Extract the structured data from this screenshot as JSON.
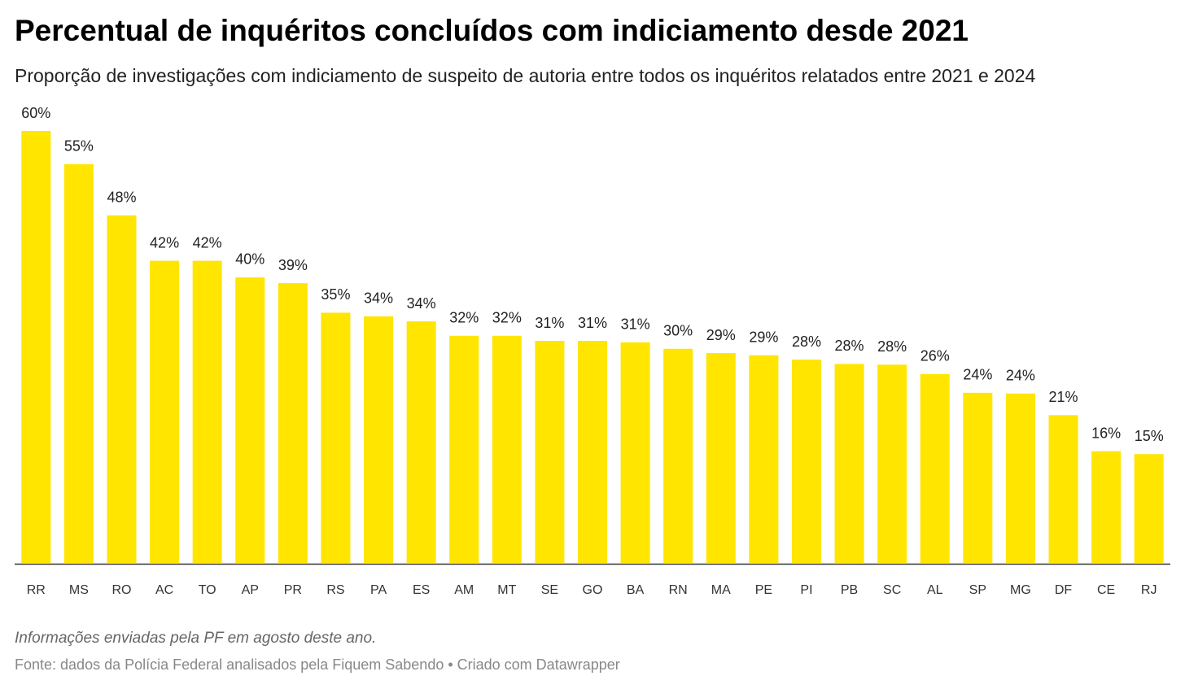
{
  "chart_data": {
    "type": "bar",
    "title": "Percentual de inquéritos concluídos com indiciamento desde 2021",
    "subtitle": "Proporção de investigações com indiciamento de suspeito de autoria entre todos os inquéritos relatados entre 2021 e 2024",
    "note": "Informações enviadas pela PF em agosto deste ano.",
    "source": "Fonte: dados da Polícia Federal analisados pela Fiquem Sabendo • Criado com Datawrapper",
    "categories": [
      "RR",
      "MS",
      "RO",
      "AC",
      "TO",
      "AP",
      "PR",
      "RS",
      "PA",
      "ES",
      "AM",
      "MT",
      "SE",
      "GO",
      "BA",
      "RN",
      "MA",
      "PE",
      "PI",
      "PB",
      "SC",
      "AL",
      "SP",
      "MG",
      "DF",
      "CE",
      "RJ"
    ],
    "values": [
      60,
      55.4,
      48.3,
      42.0,
      42.0,
      39.7,
      38.9,
      34.8,
      34.3,
      33.6,
      31.6,
      31.6,
      30.9,
      30.9,
      30.7,
      29.8,
      29.2,
      28.9,
      28.3,
      27.7,
      27.6,
      26.3,
      23.7,
      23.6,
      20.6,
      15.6,
      15.2
    ],
    "value_labels": [
      "60%",
      "55%",
      "48%",
      "42%",
      "42%",
      "40%",
      "39%",
      "35%",
      "34%",
      "34%",
      "32%",
      "32%",
      "31%",
      "31%",
      "31%",
      "30%",
      "29%",
      "29%",
      "28%",
      "28%",
      "28%",
      "26%",
      "24%",
      "24%",
      "21%",
      "16%",
      "15%"
    ],
    "color": "#ffe500",
    "ylim": [
      0,
      60
    ]
  }
}
